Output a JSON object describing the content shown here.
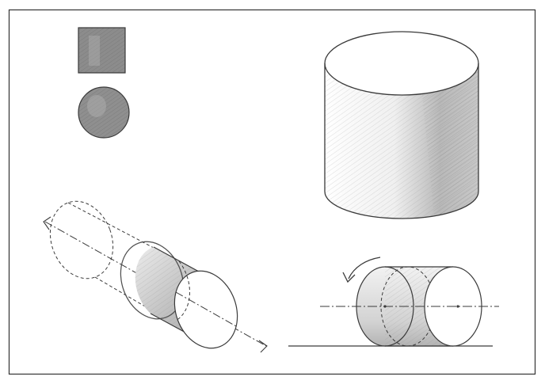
{
  "illustration": {
    "style": "pencil sketch",
    "figures": [
      {
        "id": "square",
        "kind": "shaded square"
      },
      {
        "id": "circle",
        "kind": "shaded circle"
      },
      {
        "id": "upright-cylinder",
        "kind": "upright cylinder with shading"
      },
      {
        "id": "extruded-cylinder",
        "kind": "cylinder extruded along a diagonal axis, ghost outline dashed"
      },
      {
        "id": "rolling-cylinder",
        "kind": "cylinder lying on ground line with rotation arrow"
      }
    ],
    "colors": {
      "background": "#ffffff",
      "border": "#333333",
      "pencil": "#3a3a3a",
      "shade_dark": "#7a7a7a",
      "shade_light": "#d2d2d2"
    }
  }
}
